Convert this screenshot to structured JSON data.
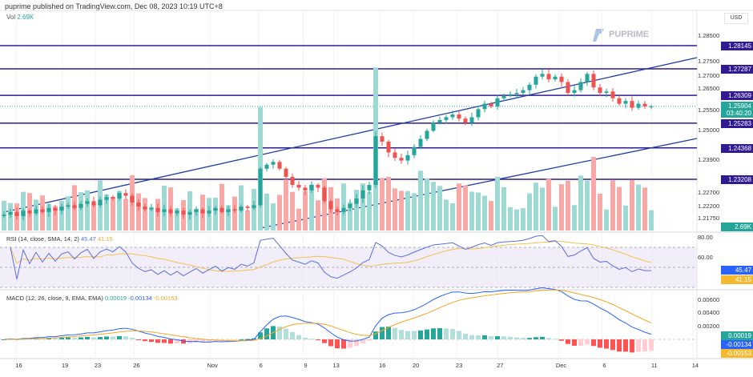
{
  "header": {
    "published": "puprime published on TradingView.com, Dec 08, 2023 10:19 UTC+8",
    "volume_label": "Vol",
    "volume_value": "2.69K",
    "currency": "USD",
    "logo": "PUPRIME"
  },
  "price_axis": [
    "1.28500",
    "1.27500",
    "1.27000",
    "1.26500",
    "1.25500",
    "1.25000",
    "1.23900",
    "1.22700",
    "1.22200",
    "1.21750"
  ],
  "levels": [
    {
      "price": 1.28145,
      "label": "1.28145"
    },
    {
      "price": 1.27287,
      "label": "1.27287"
    },
    {
      "price": 1.26309,
      "label": "1.26309"
    },
    {
      "price": 1.25283,
      "label": "1.25283"
    },
    {
      "price": 1.24368,
      "label": "1.24368"
    },
    {
      "price": 1.23208,
      "label": "1.23208"
    }
  ],
  "last_price": {
    "value": "1.25904",
    "countdown": "03:40:20",
    "volume": "2.69K"
  },
  "rsi": {
    "label": "RSI (14, close, SMA, 14, 2)",
    "value": "45.47",
    "sma": "41.15",
    "axis": [
      "80.00",
      "60.00"
    ]
  },
  "macd": {
    "label": "MACD (12, 26, close, 9, EMA, EMA)",
    "hist": "0.00019",
    "macd": "-0.00134",
    "signal": "-0.00153",
    "axis": [
      "0.00600",
      "0.00400",
      "0.00200"
    ]
  },
  "x_axis": [
    "16",
    "19",
    "23",
    "26",
    "Nov",
    "6",
    "9",
    "13",
    "16",
    "20",
    "23",
    "27",
    "Dec",
    "6",
    "11",
    "14"
  ],
  "colors": {
    "up": "#26a69a",
    "down": "#ef5350",
    "level": "#311b92",
    "trend": "#1e3fa0",
    "rsi": "#5b6ee1",
    "sma": "#f5c04a"
  },
  "chart_data": {
    "type": "candlestick",
    "closes": [
      1.219,
      1.22,
      1.2185,
      1.2205,
      1.2195,
      1.221,
      1.22,
      1.2215,
      1.2205,
      1.222,
      1.2225,
      1.2215,
      1.223,
      1.224,
      1.2225,
      1.2245,
      1.2255,
      1.225,
      1.227,
      1.226,
      1.2235,
      1.222,
      1.221,
      1.2215,
      1.22,
      1.221,
      1.2195,
      1.2205,
      1.219,
      1.22,
      1.221,
      1.2195,
      1.2205,
      1.2215,
      1.22,
      1.221,
      1.2205,
      1.222,
      1.2215,
      1.2225,
      1.236,
      1.2375,
      1.2385,
      1.236,
      1.233,
      1.23,
      1.229,
      1.228,
      1.23,
      1.229,
      1.224,
      1.221,
      1.22,
      1.2215,
      1.223,
      1.225,
      1.228,
      1.23,
      1.248,
      1.246,
      1.242,
      1.24,
      1.239,
      1.241,
      1.244,
      1.247,
      1.25,
      1.253,
      1.254,
      1.255,
      1.256,
      1.2545,
      1.253,
      1.255,
      1.258,
      1.26,
      1.259,
      1.262,
      1.263,
      1.2635,
      1.264,
      1.265,
      1.267,
      1.27,
      1.271,
      1.269,
      1.27,
      1.268,
      1.264,
      1.265,
      1.268,
      1.271,
      1.266,
      1.264,
      1.2645,
      1.262,
      1.26,
      1.261,
      1.2585,
      1.26,
      1.259,
      1.259
    ]
  }
}
